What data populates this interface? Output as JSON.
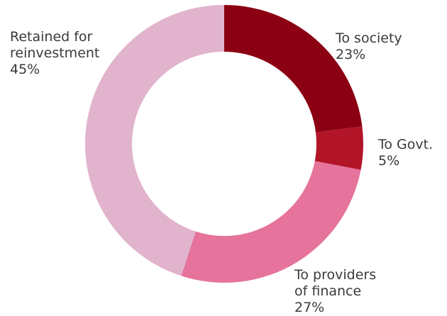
{
  "chart_data": {
    "type": "pie",
    "style": "donut",
    "slices": [
      {
        "label_lines": [
          "To society"
        ],
        "value": 23,
        "value_label": "23%",
        "color": "#8b0012"
      },
      {
        "label_lines": [
          "To Govt."
        ],
        "value": 5,
        "value_label": "5%",
        "color": "#b31528"
      },
      {
        "label_lines": [
          "To providers",
          "of finance"
        ],
        "value": 27,
        "value_label": "27%",
        "color": "#e5739c"
      },
      {
        "label_lines": [
          "Retained for",
          "reinvestment"
        ],
        "value": 45,
        "value_label": "45%",
        "color": "#e1b3cc"
      }
    ]
  }
}
